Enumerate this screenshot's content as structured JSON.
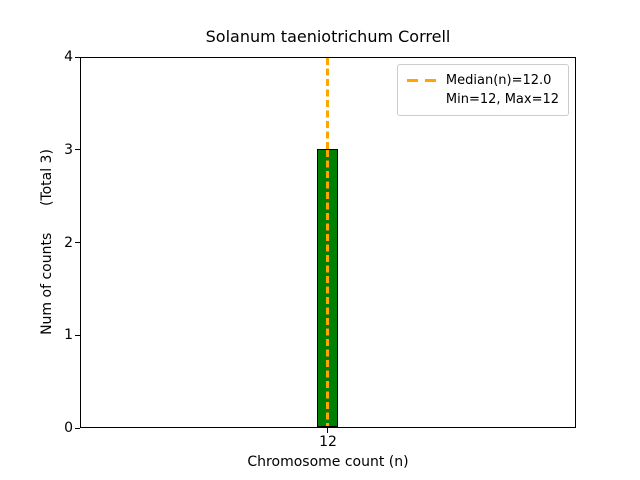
{
  "title": "Solanum taeniotrichum Correll",
  "x_axis": {
    "label": "Chromosome count (n)",
    "tick": "12"
  },
  "y_axis": {
    "label": "Num of counts      (Total 3)",
    "ticks": [
      "0",
      "1",
      "2",
      "3",
      "4"
    ]
  },
  "legend": {
    "median_label": "Median(n)=12.0",
    "minmax_label": "Min=12, Max=12"
  },
  "colors": {
    "bar_fill": "#008000",
    "bar_edge": "#000000",
    "median_line": "#FFA500",
    "legend_border": "#cccccc"
  },
  "chart_data": {
    "type": "bar",
    "title": "Solanum taeniotrichum Correll",
    "xlabel": "Chromosome count (n)",
    "ylabel": "Num of counts (Total 3)",
    "categories": [
      12
    ],
    "values": [
      3
    ],
    "total_counts": 3,
    "median_n": 12.0,
    "min_n": 12,
    "max_n": 12,
    "ylim": [
      0,
      4
    ],
    "yticks": [
      0,
      1,
      2,
      3,
      4
    ],
    "grid": false,
    "legend_position": "upper right",
    "bar_color": "#008000",
    "median_line_color": "#FFA500",
    "median_line_style": "dashed"
  }
}
